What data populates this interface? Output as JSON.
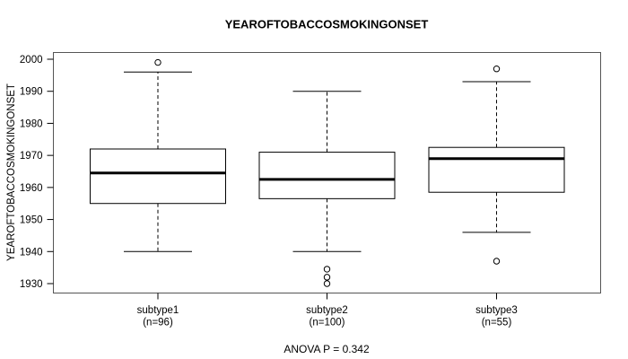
{
  "chart_data": {
    "type": "boxplot",
    "title": "YEAROFTOBACCOSMOKINGONSET",
    "ylabel": "YEAROFTOBACCOSMOKINGONSET",
    "xlabel": "",
    "annotation": "ANOVA P = 0.342",
    "ylim": [
      1926,
      2002
    ],
    "yticks": [
      1930,
      1940,
      1950,
      1960,
      1970,
      1980,
      1990,
      2000
    ],
    "grid": false,
    "legend": "none",
    "groups": [
      {
        "label": "subtype1",
        "sublabel": "(n=96)",
        "n": 96,
        "whisker_low": 1940,
        "q1": 1955,
        "median": 1964.5,
        "q3": 1972,
        "whisker_high": 1996,
        "outliers": [
          1999
        ]
      },
      {
        "label": "subtype2",
        "sublabel": "(n=100)",
        "n": 100,
        "whisker_low": 1940,
        "q1": 1956.5,
        "median": 1962.5,
        "q3": 1971,
        "whisker_high": 1990,
        "outliers": [
          1934.5,
          1932,
          1930
        ]
      },
      {
        "label": "subtype3",
        "sublabel": "(n=55)",
        "n": 55,
        "whisker_low": 1946,
        "q1": 1958.5,
        "median": 1969,
        "q3": 1972.5,
        "whisker_high": 1993,
        "outliers": [
          1997,
          1937
        ]
      }
    ],
    "colors": {
      "line": "#000000",
      "plot_border": "#555555",
      "box_fill": "#ffffff",
      "background": "#ffffff"
    }
  }
}
